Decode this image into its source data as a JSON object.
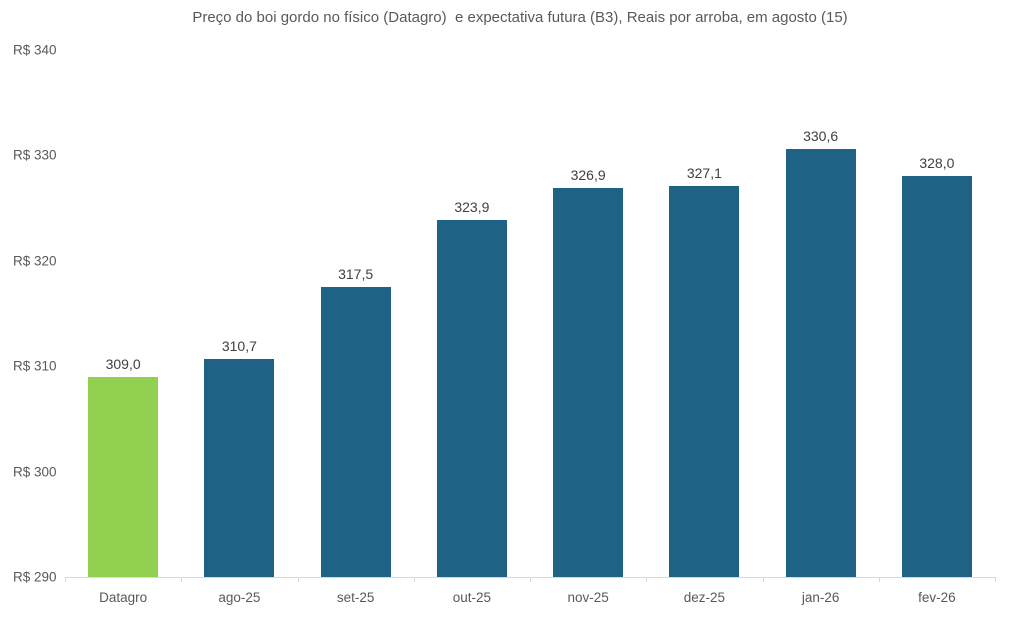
{
  "chart_data": {
    "type": "bar",
    "title": "Preço do boi gordo no físico (Datagro)  e expectativa futura (B3), Reais por arroba, em agosto (15)",
    "categories": [
      "Datagro",
      "ago-25",
      "set-25",
      "out-25",
      "nov-25",
      "dez-25",
      "jan-26",
      "fev-26"
    ],
    "values": [
      309.0,
      310.7,
      317.5,
      323.9,
      326.9,
      327.1,
      330.6,
      328.0
    ],
    "value_labels": [
      "309,0",
      "310,7",
      "317,5",
      "323,9",
      "326,9",
      "327,1",
      "330,6",
      "328,0"
    ],
    "ylabel": "",
    "xlabel": "",
    "ylim": [
      290,
      340
    ],
    "y_ticks": [
      {
        "label": "R$ 340",
        "value": 340
      },
      {
        "label": "R$ 330",
        "value": 330
      },
      {
        "label": "R$ 320",
        "value": 320
      },
      {
        "label": "R$ 310",
        "value": 310
      },
      {
        "label": "R$ 300",
        "value": 300
      },
      {
        "label": "R$ 290",
        "value": 290
      }
    ],
    "grid": false,
    "legend": "none",
    "bar_colors": [
      "#92D050",
      "#1E6286",
      "#1E6286",
      "#1E6286",
      "#1E6286",
      "#1E6286",
      "#1E6286",
      "#1E6286"
    ],
    "colors": {
      "highlight_green": "#92D050",
      "series_teal": "#1E6286",
      "axis_line": "#D9D9D9",
      "title_text": "#595959",
      "axis_text": "#595959",
      "value_label_text": "#404040",
      "background": "#FFFFFF"
    }
  }
}
